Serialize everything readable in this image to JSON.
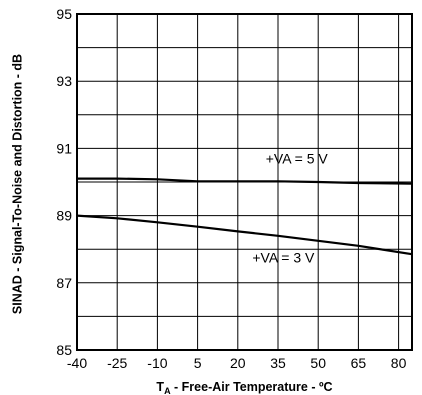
{
  "chart_data": {
    "type": "line",
    "xlabel": "T",
    "xlabel_subscript": "A",
    "xlabel_rest": " - Free-Air Temperature - ºC",
    "ylabel": "SINAD - Signal-To-Noise and Distortion - dB",
    "xlim": [
      -40,
      85
    ],
    "ylim": [
      85,
      95
    ],
    "xticks": [
      -40,
      -25,
      -10,
      5,
      20,
      35,
      50,
      65,
      80
    ],
    "yticks": [
      85,
      87,
      89,
      91,
      93,
      95
    ],
    "grid": true,
    "series": [
      {
        "name": "+VA = 5 V",
        "x": [
          -40,
          -25,
          -10,
          5,
          20,
          35,
          50,
          65,
          85
        ],
        "y": [
          90.1,
          90.1,
          90.08,
          90.02,
          90.02,
          90.02,
          90.0,
          89.97,
          89.95
        ]
      },
      {
        "name": "+VA = 3 V",
        "x": [
          -40,
          -25,
          -10,
          5,
          20,
          35,
          50,
          65,
          85
        ],
        "y": [
          89.0,
          88.92,
          88.8,
          88.67,
          88.53,
          88.4,
          88.25,
          88.1,
          87.85
        ]
      }
    ],
    "annotations": [
      {
        "text": "+VA = 5 V",
        "x": 42,
        "y": 90.55
      },
      {
        "text": "+VA = 3 V",
        "x": 37,
        "y": 87.6
      }
    ],
    "colors": {
      "line": "#000000",
      "grid": "#000000",
      "background": "#ffffff"
    }
  }
}
